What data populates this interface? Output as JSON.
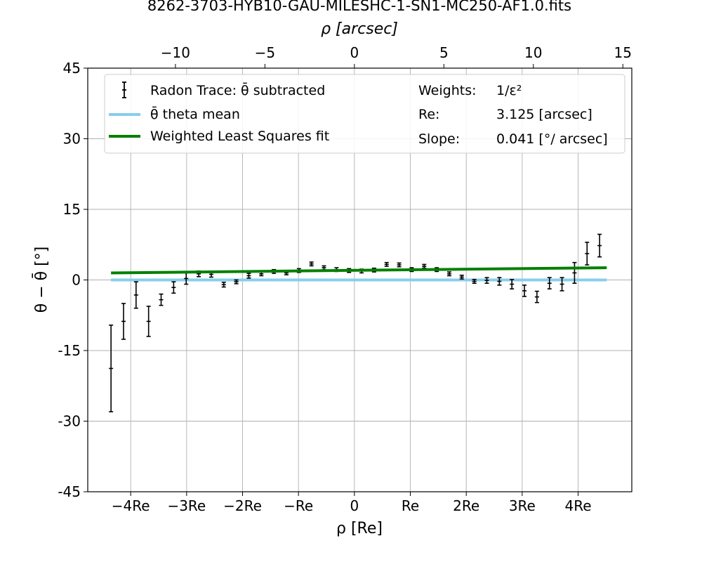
{
  "chart_data": {
    "type": "scatter",
    "title": "8262-3703-HYB10-GAU-MILESHC-1-SN1-MC250-AF1.0.fits",
    "top_xlabel": "ρ [arcsec]",
    "xlabel": "ρ [Re]",
    "ylabel": "θ − θ̄ [°]",
    "re_arcsec": 3.125,
    "xlim_arcsec": [
      -14.9,
      15.5
    ],
    "ylim": [
      -45,
      45
    ],
    "y_ticks": [
      45,
      30,
      15,
      0,
      -15,
      -30,
      -45
    ],
    "y_tick_labels": [
      "45",
      "30",
      "15",
      "0",
      "-15",
      "-30",
      "-45"
    ],
    "top_x_ticks": [
      -10,
      -5,
      0,
      5,
      10,
      15
    ],
    "top_x_tick_labels": [
      "−10",
      "−5",
      "0",
      "5",
      "10",
      "15"
    ],
    "bottom_x_ticks_arcsec": [
      -12.5,
      -9.375,
      -6.25,
      -3.125,
      0,
      3.125,
      6.25,
      9.375,
      12.5
    ],
    "bottom_x_tick_labels": [
      "−4Re",
      "−3Re",
      "−2Re",
      "−Re",
      "0",
      "Re",
      "2Re",
      "3Re",
      "4Re"
    ],
    "grid": true,
    "legend": {
      "placement": "top",
      "entries": [
        {
          "label": "Radon Trace: θ̄ subtracted",
          "kind": "errorbar",
          "color": "#000000"
        },
        {
          "label": "θ̄ theta mean",
          "kind": "line",
          "color": "#87ceeb"
        },
        {
          "label": "Weighted Least Squares fit",
          "kind": "line",
          "color": "#008000"
        }
      ],
      "info": [
        {
          "key": "Weights:",
          "value": "1/ε²"
        },
        {
          "key": "Re:",
          "value": "3.125 [arcsec]"
        },
        {
          "key": "Slope:",
          "value": "0.041 [°/ arcsec]"
        }
      ]
    },
    "series": [
      {
        "name": "Radon Trace: θ̄ subtracted",
        "color": "#000000",
        "x": [
          -13.6,
          -12.9,
          -12.2,
          -11.5,
          -10.8,
          -10.1,
          -9.4,
          -8.7,
          -8.0,
          -7.3,
          -6.6,
          -5.9,
          -5.2,
          -4.5,
          -3.8,
          -3.1,
          -2.4,
          -1.7,
          -1.0,
          -0.3,
          0.4,
          1.1,
          1.8,
          2.5,
          3.2,
          3.9,
          4.6,
          5.3,
          6.0,
          6.7,
          7.4,
          8.1,
          8.8,
          9.5,
          10.2,
          10.9,
          11.6,
          12.3,
          13.0,
          13.7
        ],
        "y": [
          -18.8,
          -8.8,
          -3.2,
          -8.8,
          -4.2,
          -1.6,
          0.3,
          1.3,
          1.2,
          -1.0,
          -0.4,
          0.9,
          1.3,
          1.8,
          1.5,
          2.0,
          3.4,
          2.6,
          2.2,
          2.0,
          1.9,
          2.1,
          3.3,
          3.2,
          2.2,
          2.9,
          2.2,
          1.3,
          0.6,
          -0.3,
          -0.1,
          -0.3,
          -0.9,
          -2.3,
          -3.6,
          -0.7,
          -0.9,
          1.5,
          5.6,
          7.3
        ],
        "yerr": [
          9.2,
          3.8,
          2.8,
          3.2,
          1.2,
          1.2,
          1.2,
          0.6,
          0.6,
          0.5,
          0.4,
          0.5,
          0.4,
          0.4,
          0.4,
          0.4,
          0.4,
          0.4,
          0.4,
          0.4,
          0.4,
          0.4,
          0.4,
          0.4,
          0.4,
          0.4,
          0.4,
          0.4,
          0.4,
          0.4,
          0.6,
          0.8,
          1.0,
          1.2,
          1.2,
          1.2,
          1.4,
          2.2,
          2.4,
          2.4
        ]
      },
      {
        "name": "θ̄ theta mean",
        "color": "#87ceeb",
        "x": [
          -13.6,
          14.1
        ],
        "y": [
          0,
          0
        ]
      },
      {
        "name": "Weighted Least Squares fit",
        "color": "#008000",
        "x": [
          -13.6,
          14.1
        ],
        "y": [
          1.5,
          2.6
        ]
      }
    ]
  }
}
